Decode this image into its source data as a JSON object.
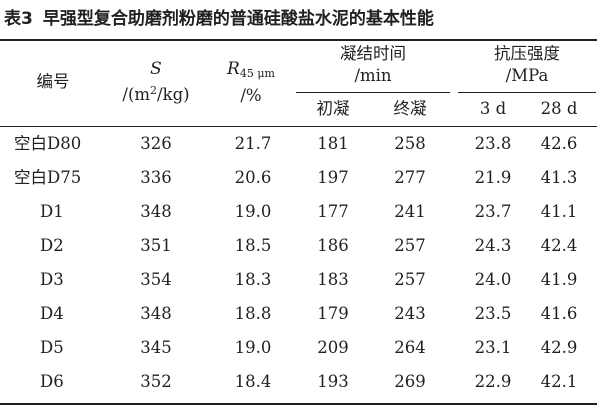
{
  "caption": {
    "number": "表3",
    "title": "早强型复合助磨剂粉磨的普通硅酸盐水泥的基本性能"
  },
  "headers": {
    "id": "编号",
    "s_symbol": "S",
    "s_unit_open": "/(m",
    "s_unit_exp": "2",
    "s_unit_close": "/kg)",
    "r_symbol": "R",
    "r_sub": "45 μm",
    "r_unit": "/%",
    "setting_time": "凝结时间",
    "setting_unit": "/min",
    "initial": "初凝",
    "final": "终凝",
    "strength": "抗压强度",
    "strength_unit": "/MPa",
    "d3": "3 d",
    "d28": "28 d"
  },
  "rows": [
    {
      "id": "空白D80",
      "s": "326",
      "r": "21.7",
      "initial": "181",
      "final": "258",
      "d3": "23.8",
      "d28": "42.6"
    },
    {
      "id": "空白D75",
      "s": "336",
      "r": "20.6",
      "initial": "197",
      "final": "277",
      "d3": "21.9",
      "d28": "41.3"
    },
    {
      "id": "D1",
      "s": "348",
      "r": "19.0",
      "initial": "177",
      "final": "241",
      "d3": "23.7",
      "d28": "41.1"
    },
    {
      "id": "D2",
      "s": "351",
      "r": "18.5",
      "initial": "186",
      "final": "257",
      "d3": "24.3",
      "d28": "42.4"
    },
    {
      "id": "D3",
      "s": "354",
      "r": "18.3",
      "initial": "183",
      "final": "257",
      "d3": "24.0",
      "d28": "41.9"
    },
    {
      "id": "D4",
      "s": "348",
      "r": "18.8",
      "initial": "179",
      "final": "243",
      "d3": "23.5",
      "d28": "41.6"
    },
    {
      "id": "D5",
      "s": "345",
      "r": "19.0",
      "initial": "209",
      "final": "264",
      "d3": "23.1",
      "d28": "42.9"
    },
    {
      "id": "D6",
      "s": "352",
      "r": "18.4",
      "initial": "193",
      "final": "269",
      "d3": "22.9",
      "d28": "42.1"
    }
  ]
}
